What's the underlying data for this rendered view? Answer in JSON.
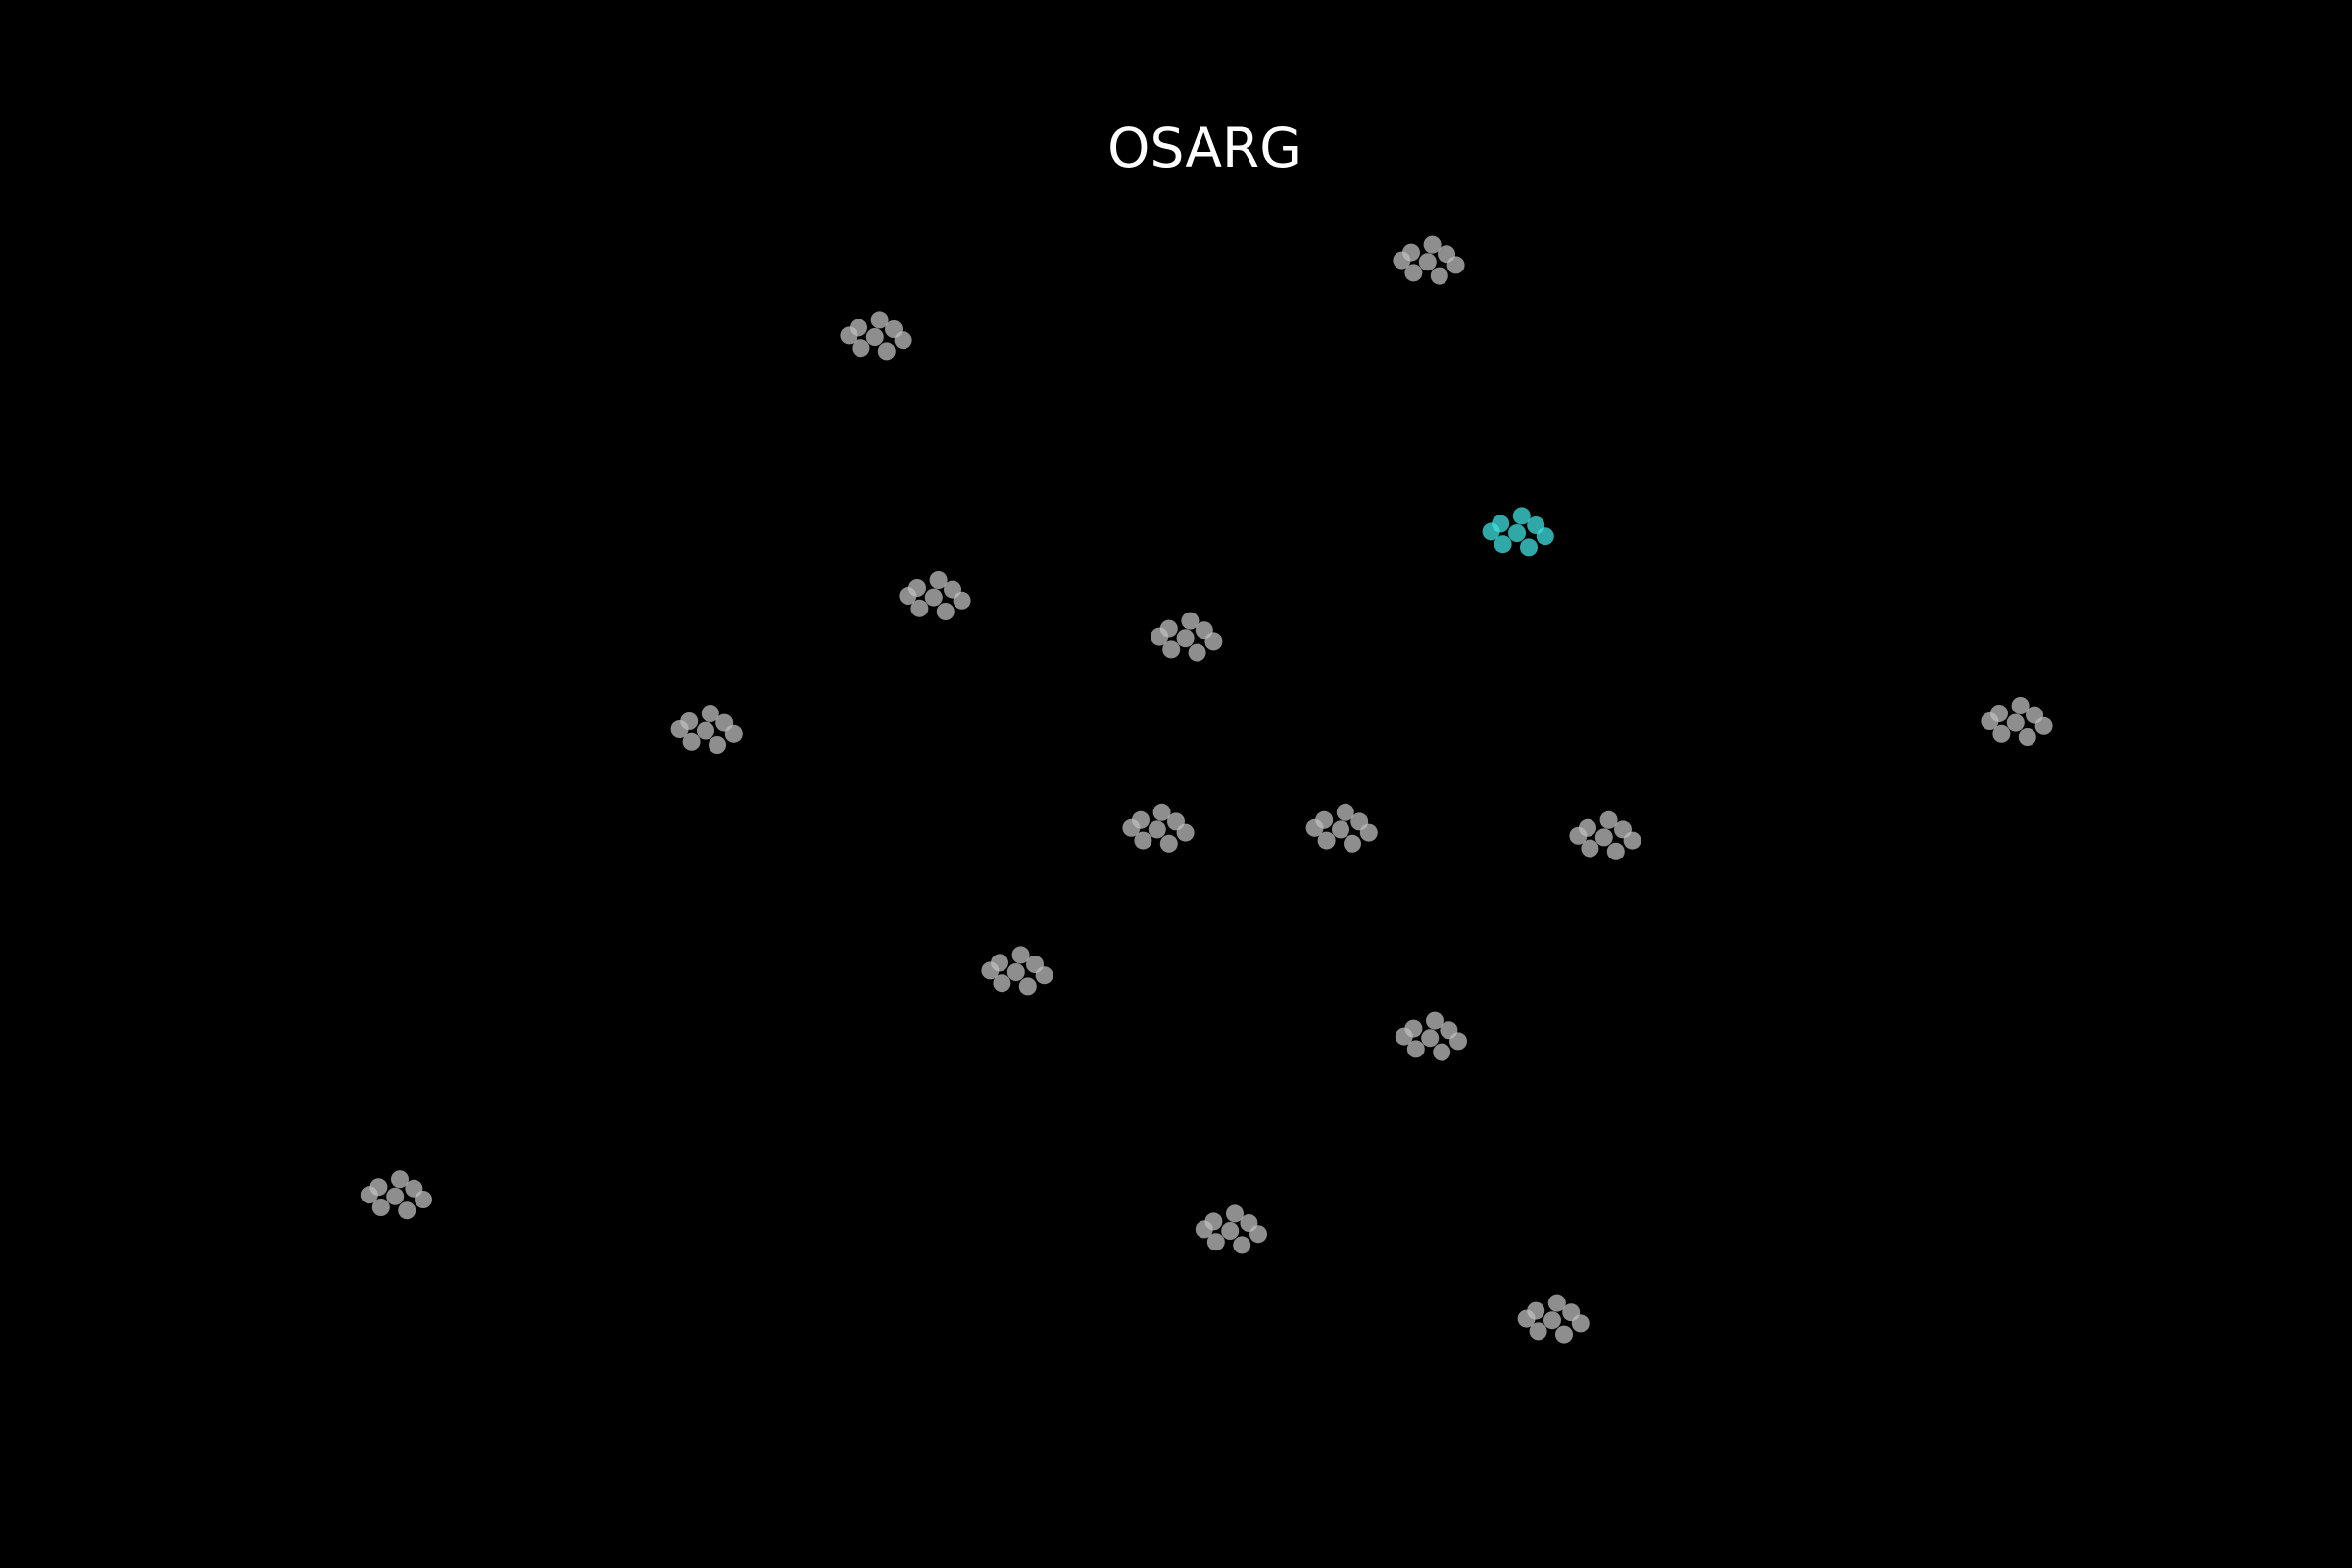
{
  "chart_data": {
    "type": "scatter",
    "title": "OSARG",
    "xlim": [
      0,
      100
    ],
    "ylim": [
      0,
      100
    ],
    "background": "#000000",
    "series": [
      {
        "color": "#bdbdbd",
        "x": [
          60.7,
          61.5,
          60.0,
          61.2,
          60.1,
          61.9,
          59.6,
          60.9,
          37.2,
          38.0,
          36.5,
          37.7,
          36.6,
          38.4,
          36.1,
          37.4,
          39.7,
          40.5,
          39.0,
          40.2,
          39.1,
          40.9,
          38.6,
          39.9,
          50.4,
          51.2,
          49.7,
          50.9,
          49.8,
          51.6,
          49.3,
          50.6,
          30.0,
          30.8,
          29.3,
          30.5,
          29.4,
          31.2,
          28.9,
          30.2,
          85.7,
          86.5,
          85.0,
          86.2,
          85.1,
          86.9,
          84.6,
          85.9,
          49.2,
          50.0,
          48.5,
          49.7,
          48.6,
          50.4,
          48.1,
          49.4,
          57.0,
          57.8,
          56.3,
          57.5,
          56.4,
          58.2,
          55.9,
          57.2,
          68.2,
          69.0,
          67.5,
          68.7,
          67.6,
          69.4,
          67.1,
          68.4,
          43.2,
          44.0,
          42.5,
          43.7,
          42.6,
          44.4,
          42.1,
          43.4,
          60.8,
          61.6,
          60.1,
          61.3,
          60.2,
          62.0,
          59.7,
          61.0,
          16.8,
          17.6,
          16.1,
          17.3,
          16.2,
          18.0,
          15.7,
          17.0,
          52.3,
          53.1,
          51.6,
          52.8,
          51.7,
          53.5,
          51.2,
          52.5,
          66.0,
          66.8,
          65.3,
          66.5,
          65.4,
          67.2,
          64.9,
          66.2
        ],
        "values": [
          83.3,
          83.8,
          83.9,
          82.4,
          82.6,
          83.1,
          83.4,
          84.4,
          78.5,
          79.0,
          79.1,
          77.6,
          77.8,
          78.3,
          78.6,
          79.6,
          61.9,
          62.4,
          62.5,
          61.0,
          61.2,
          61.7,
          62.0,
          63.0,
          59.3,
          59.8,
          59.9,
          58.4,
          58.6,
          59.1,
          59.4,
          60.4,
          53.4,
          53.9,
          54.0,
          52.5,
          52.7,
          53.2,
          53.5,
          54.5,
          53.9,
          54.4,
          54.5,
          53.0,
          53.2,
          53.7,
          54.0,
          55.0,
          47.1,
          47.6,
          47.7,
          46.2,
          46.4,
          46.9,
          47.2,
          48.2,
          47.1,
          47.6,
          47.7,
          46.2,
          46.4,
          46.9,
          47.2,
          48.2,
          46.6,
          47.1,
          47.2,
          45.7,
          45.9,
          46.4,
          46.7,
          47.7,
          38.0,
          38.5,
          38.6,
          37.1,
          37.3,
          37.8,
          38.1,
          39.1,
          33.8,
          34.3,
          34.4,
          32.9,
          33.1,
          33.6,
          33.9,
          34.9,
          23.7,
          24.2,
          24.3,
          22.8,
          23.0,
          23.5,
          23.8,
          24.8,
          21.5,
          22.0,
          22.1,
          20.6,
          20.8,
          21.3,
          21.6,
          22.6,
          15.8,
          16.3,
          16.4,
          14.9,
          15.1,
          15.6,
          15.9,
          16.9
        ]
      },
      {
        "color": "#40e0e0",
        "x": [
          64.5,
          65.3,
          63.8,
          65.0,
          63.9,
          65.7,
          63.4,
          64.7
        ],
        "values": [
          66.0,
          66.5,
          66.6,
          65.1,
          65.3,
          65.8,
          66.1,
          67.1
        ]
      }
    ]
  }
}
